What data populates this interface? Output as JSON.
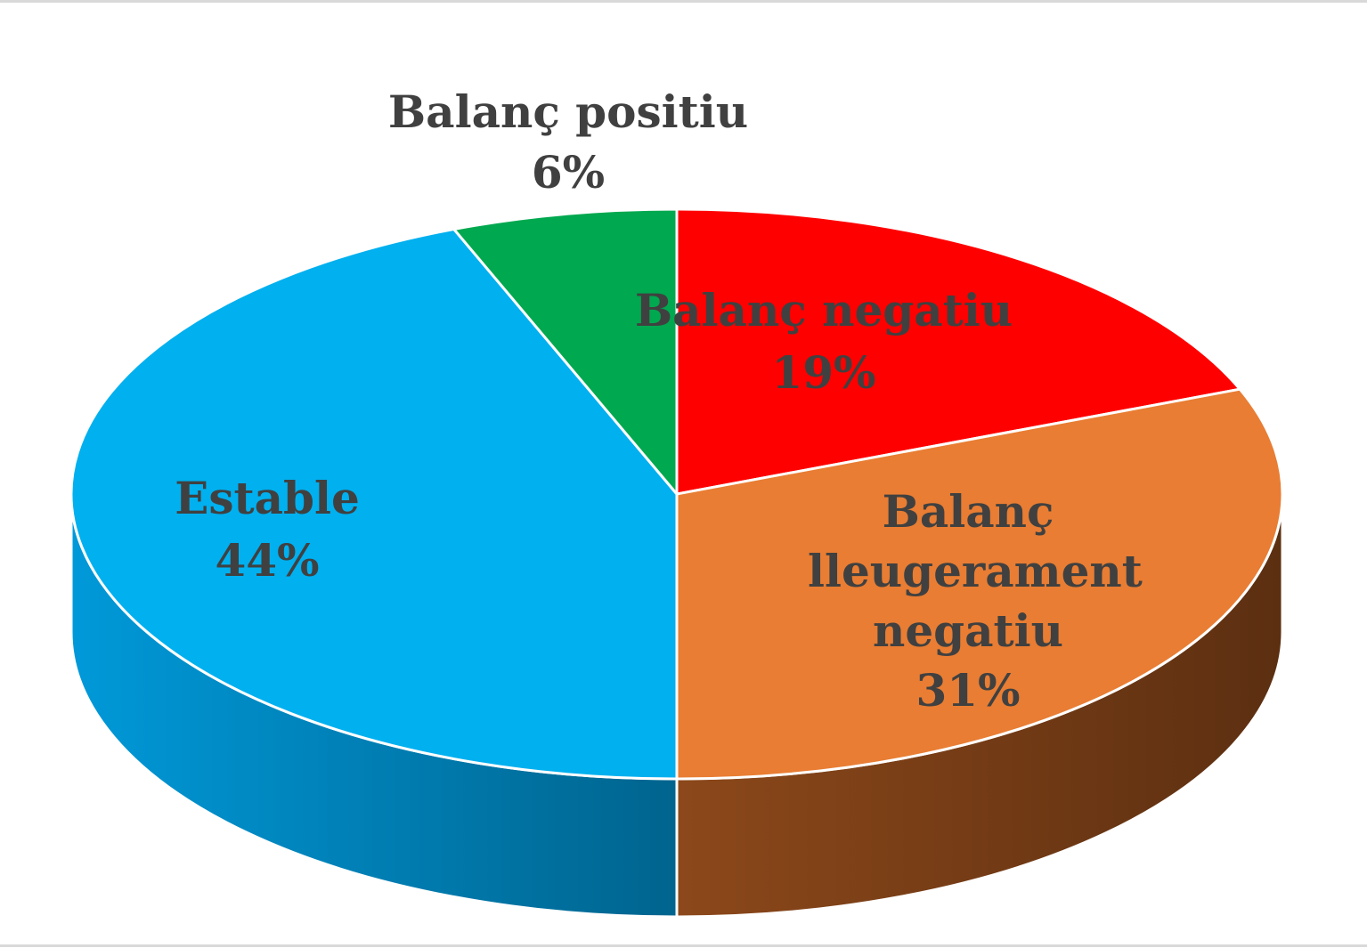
{
  "chart_data": {
    "type": "pie",
    "title": "",
    "series": [
      {
        "slices": [
          {
            "label": "Balanç negatiu",
            "value": 19,
            "value_label": "19%",
            "color": "#ff0000",
            "side_color": "#b30000"
          },
          {
            "label": "Balanç lleugerament negatiu",
            "value": 31,
            "value_label": "31%",
            "color": "#e87d33",
            "side_color": "#7a3f17"
          },
          {
            "label": "Estable",
            "value": 44,
            "value_label": "44%",
            "color": "#00b0ef",
            "side_color": "#0085bd"
          },
          {
            "label": "Balanç positiu",
            "value": 6,
            "value_label": "6%",
            "color": "#00a84f",
            "side_color": "#006b30"
          }
        ]
      }
    ],
    "start_angle": "12 o'clock",
    "direction": "clockwise",
    "style": "3D pie",
    "data_labels": "category name and percentage",
    "legend": "none"
  }
}
